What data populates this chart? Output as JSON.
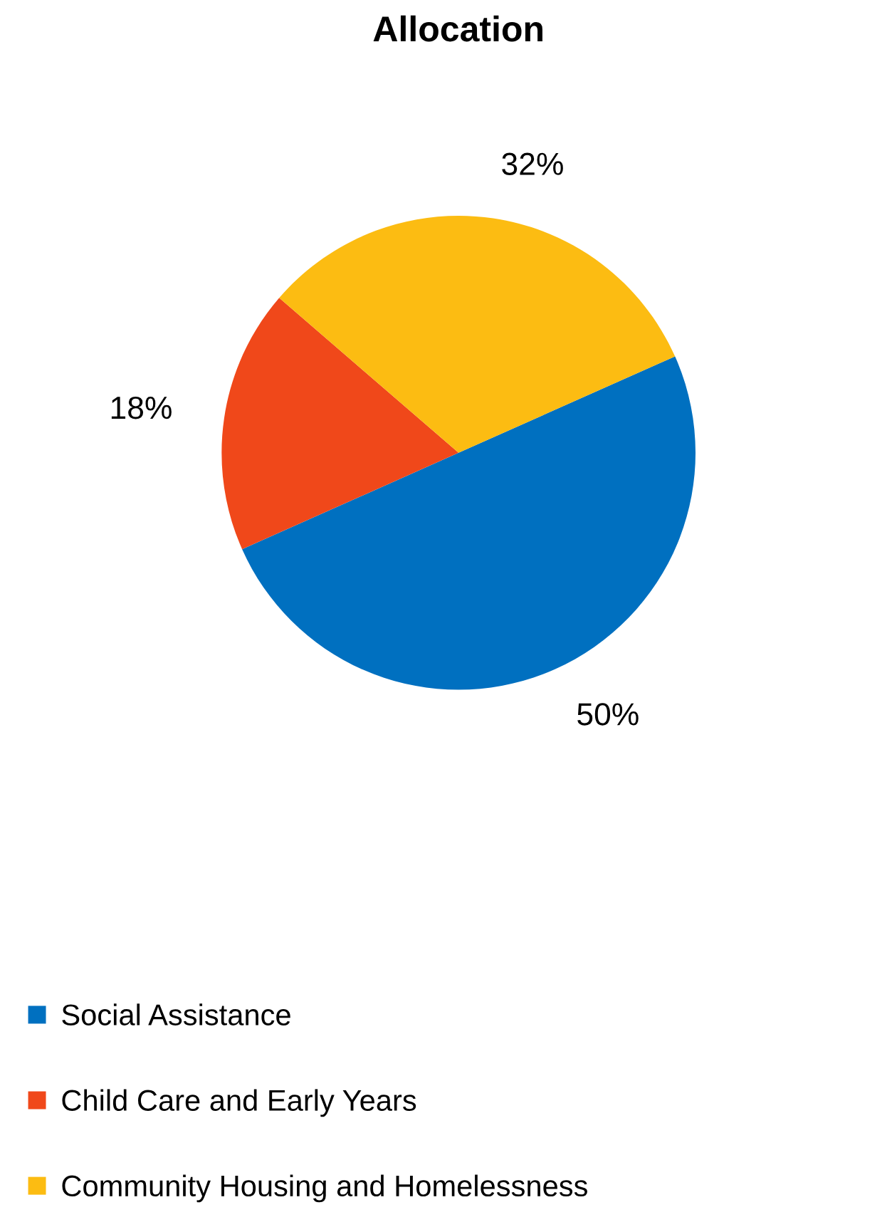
{
  "chart_data": {
    "type": "pie",
    "title": "Allocation",
    "categories": [
      "Social Assistance",
      "Child Care and Early Years",
      "Community Housing and Homelessness"
    ],
    "values": [
      50,
      18,
      32
    ],
    "colors": [
      "#0070c0",
      "#f0481a",
      "#fcbc12"
    ],
    "value_labels": [
      "50%",
      "18%",
      "32%"
    ],
    "legend": "bottom"
  }
}
